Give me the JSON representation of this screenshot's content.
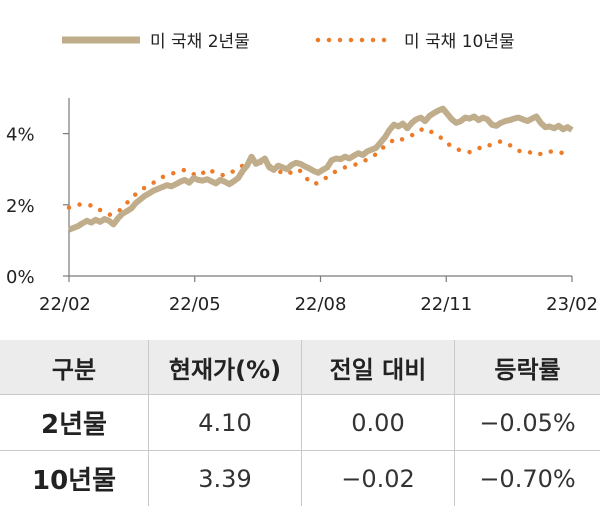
{
  "chart_data": {
    "type": "line",
    "legend": {
      "position": "top"
    },
    "x_ticks": [
      "22/02",
      "22/05",
      "22/08",
      "22/11",
      "23/02"
    ],
    "y_ticks": [
      "0%",
      "2%",
      "4%"
    ],
    "ylim": [
      0,
      5
    ],
    "series": [
      {
        "name": "미 국채 2년물",
        "color": "#c0ad8c",
        "style": "solid",
        "values": [
          1.3,
          1.35,
          1.4,
          1.48,
          1.55,
          1.5,
          1.58,
          1.52,
          1.6,
          1.55,
          1.45,
          1.62,
          1.75,
          1.82,
          1.9,
          2.05,
          2.15,
          2.25,
          2.32,
          2.4,
          2.45,
          2.5,
          2.55,
          2.52,
          2.58,
          2.65,
          2.7,
          2.62,
          2.75,
          2.7,
          2.68,
          2.72,
          2.66,
          2.6,
          2.7,
          2.65,
          2.58,
          2.66,
          2.75,
          2.95,
          3.1,
          3.35,
          3.15,
          3.22,
          3.3,
          3.05,
          2.98,
          3.1,
          3.05,
          3.0,
          3.12,
          3.18,
          3.15,
          3.08,
          3.02,
          2.95,
          2.9,
          2.98,
          3.05,
          3.25,
          3.3,
          3.28,
          3.35,
          3.3,
          3.38,
          3.45,
          3.4,
          3.5,
          3.55,
          3.6,
          3.75,
          3.9,
          4.1,
          4.25,
          4.2,
          4.28,
          4.15,
          4.3,
          4.4,
          4.45,
          4.35,
          4.5,
          4.58,
          4.65,
          4.7,
          4.55,
          4.4,
          4.3,
          4.35,
          4.45,
          4.42,
          4.48,
          4.38,
          4.45,
          4.4,
          4.25,
          4.22,
          4.3,
          4.35,
          4.38,
          4.42,
          4.45,
          4.4,
          4.35,
          4.42,
          4.48,
          4.3,
          4.18,
          4.2,
          4.15,
          4.22,
          4.12,
          4.18,
          4.1
        ]
      },
      {
        "name": "미 국채 10년물",
        "color": "#ec7c2a",
        "style": "dotted",
        "values": [
          1.92,
          1.96,
          2.0,
          2.02,
          2.0,
          1.98,
          1.95,
          1.85,
          1.78,
          1.72,
          1.75,
          1.8,
          1.92,
          2.05,
          2.18,
          2.3,
          2.4,
          2.48,
          2.55,
          2.62,
          2.7,
          2.78,
          2.82,
          2.88,
          2.9,
          2.95,
          2.98,
          2.92,
          2.86,
          2.8,
          2.88,
          3.0,
          2.95,
          2.9,
          2.85,
          2.82,
          2.88,
          2.95,
          3.02,
          3.1,
          3.2,
          3.3,
          3.25,
          3.18,
          3.15,
          3.1,
          3.02,
          2.95,
          2.9,
          2.85,
          2.92,
          3.0,
          2.95,
          2.8,
          2.65,
          2.58,
          2.62,
          2.7,
          2.78,
          2.85,
          2.95,
          3.0,
          3.05,
          3.08,
          3.12,
          3.15,
          3.2,
          3.28,
          3.35,
          3.42,
          3.55,
          3.65,
          3.75,
          3.82,
          3.78,
          3.85,
          3.9,
          3.95,
          4.05,
          4.1,
          4.15,
          4.08,
          4.0,
          3.92,
          3.85,
          3.72,
          3.65,
          3.58,
          3.52,
          3.5,
          3.48,
          3.55,
          3.6,
          3.58,
          3.65,
          3.7,
          3.75,
          3.78,
          3.72,
          3.68,
          3.58,
          3.52,
          3.48,
          3.5,
          3.45,
          3.48,
          3.42,
          3.45,
          3.5,
          3.48,
          3.45,
          3.47,
          3.42,
          3.39
        ]
      }
    ]
  },
  "table": {
    "headers": [
      "구분",
      "현재가(%)",
      "전일 대비",
      "등락률"
    ],
    "rows": [
      {
        "label": "2년물",
        "price": "4.10",
        "change": "0.00",
        "rate": "−0.05%"
      },
      {
        "label": "10년물",
        "price": "3.39",
        "change": "−0.02",
        "rate": "−0.70%"
      }
    ]
  }
}
